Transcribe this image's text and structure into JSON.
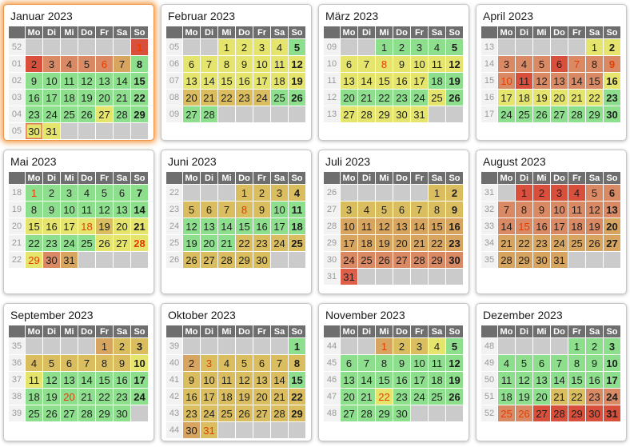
{
  "calendar": {
    "year": "2023",
    "day_headers": [
      "Mo",
      "Di",
      "Mi",
      "Do",
      "Fr",
      "Sa",
      "So"
    ],
    "colors": {
      "g": "#8ddf8d",
      "y": "#e5e56e",
      "m": "#dabd5e",
      "t": "#d7a55f",
      "o": "#d98a64",
      "r": "#d8503c",
      "s": "#dd5f4a",
      "empty": "#cbcbcb",
      "holiday_text": "#e63c00",
      "header_bg": "#6e6e6e",
      "week_bg": "#f2f2f2",
      "highlight_glow": "#f39642"
    },
    "months": [
      {
        "name": "Januar 2023",
        "highlighted": true,
        "weeks": [
          {
            "num": "52",
            "days": [
              "",
              "",
              "",
              "",
              "",
              "",
              "1:r:h"
            ]
          },
          {
            "num": "01",
            "days": [
              "2:r",
              "3:o",
              "4:o",
              "5:o",
              "6:o:h",
              "7:t",
              "8:g"
            ]
          },
          {
            "num": "02",
            "days": [
              "9:g",
              "10:g",
              "11:g",
              "12:g",
              "13:g",
              "14:g",
              "15:g"
            ]
          },
          {
            "num": "03",
            "days": [
              "16:g",
              "17:g",
              "18:g",
              "19:g",
              "20:g",
              "21:g",
              "22:g"
            ]
          },
          {
            "num": "04",
            "days": [
              "23:g",
              "24:g",
              "25:g",
              "26:g",
              "27:y",
              "28:g",
              "29:g"
            ]
          },
          {
            "num": "05",
            "days": [
              "30:y:n",
              "31:y",
              "",
              "",
              "",
              "",
              ""
            ]
          }
        ]
      },
      {
        "name": "Februar 2023",
        "highlighted": false,
        "weeks": [
          {
            "num": "05",
            "days": [
              "",
              "",
              "1:y",
              "2:y",
              "3:y",
              "4:y",
              "5:g"
            ]
          },
          {
            "num": "06",
            "days": [
              "6:y",
              "7:y",
              "8:y",
              "9:y",
              "10:y",
              "11:y",
              "12:y"
            ]
          },
          {
            "num": "07",
            "days": [
              "13:y",
              "14:y",
              "15:y",
              "16:y",
              "17:y",
              "18:y",
              "19:y"
            ]
          },
          {
            "num": "08",
            "days": [
              "20:m",
              "21:m",
              "22:m",
              "23:m",
              "24:m",
              "25:g",
              "26:g"
            ]
          },
          {
            "num": "09",
            "days": [
              "27:g",
              "28:g",
              "",
              "",
              "",
              "",
              ""
            ]
          }
        ]
      },
      {
        "name": "März 2023",
        "highlighted": false,
        "weeks": [
          {
            "num": "09",
            "days": [
              "",
              "",
              "1:g",
              "2:g",
              "3:g",
              "4:g",
              "5:g"
            ]
          },
          {
            "num": "10",
            "days": [
              "6:y",
              "7:y",
              "8:y:h",
              "9:y",
              "10:y",
              "11:y",
              "12:y"
            ]
          },
          {
            "num": "11",
            "days": [
              "13:y",
              "14:y",
              "15:y",
              "16:y",
              "17:y",
              "18:g",
              "19:g"
            ]
          },
          {
            "num": "12",
            "days": [
              "20:g",
              "21:g",
              "22:g",
              "23:g",
              "24:g",
              "25:y",
              "26:g"
            ]
          },
          {
            "num": "13",
            "days": [
              "27:y",
              "28:y",
              "29:y",
              "30:y",
              "31:y",
              "",
              ""
            ]
          }
        ]
      },
      {
        "name": "April 2023",
        "highlighted": false,
        "weeks": [
          {
            "num": "13",
            "days": [
              "",
              "",
              "",
              "",
              "",
              "1:y",
              "2:y"
            ]
          },
          {
            "num": "14",
            "days": [
              "3:o",
              "4:o",
              "5:o",
              "6:r",
              "7:o:h",
              "8:o",
              "9:o:h"
            ]
          },
          {
            "num": "15",
            "days": [
              "10:o:h",
              "11:r",
              "12:o",
              "13:o",
              "14:o",
              "15:o",
              "16:y"
            ]
          },
          {
            "num": "16",
            "days": [
              "17:y",
              "18:y",
              "19:y",
              "20:y",
              "21:y",
              "22:y",
              "23:g"
            ]
          },
          {
            "num": "17",
            "days": [
              "24:g",
              "25:g",
              "26:g",
              "27:g",
              "28:g",
              "29:g",
              "30:g"
            ]
          }
        ]
      },
      {
        "name": "Mai 2023",
        "highlighted": false,
        "weeks": [
          {
            "num": "18",
            "days": [
              "1:g:h",
              "2:g",
              "3:g",
              "4:g",
              "5:g",
              "6:g",
              "7:g"
            ]
          },
          {
            "num": "19",
            "days": [
              "8:g",
              "9:g",
              "10:g",
              "11:g",
              "12:g",
              "13:g",
              "14:g"
            ]
          },
          {
            "num": "20",
            "days": [
              "15:y",
              "16:y",
              "17:y",
              "18:y:h",
              "19:m",
              "20:y",
              "21:y"
            ]
          },
          {
            "num": "21",
            "days": [
              "22:g",
              "23:g",
              "24:g",
              "25:g",
              "26:y",
              "27:y",
              "28:y:h"
            ]
          },
          {
            "num": "22",
            "days": [
              "29:y:h",
              "30:o",
              "31:t",
              "",
              "",
              "",
              ""
            ]
          }
        ]
      },
      {
        "name": "Juni 2023",
        "highlighted": false,
        "weeks": [
          {
            "num": "22",
            "days": [
              "",
              "",
              "",
              "1:m",
              "2:m",
              "3:m",
              "4:m"
            ]
          },
          {
            "num": "23",
            "days": [
              "5:m",
              "6:m",
              "7:m",
              "8:m:h",
              "9:m",
              "10:g",
              "11:g"
            ]
          },
          {
            "num": "24",
            "days": [
              "12:g",
              "13:g",
              "14:g",
              "15:g",
              "16:g",
              "17:g",
              "18:g"
            ]
          },
          {
            "num": "25",
            "days": [
              "19:g",
              "20:g",
              "21:g",
              "22:m",
              "23:m",
              "24:m",
              "25:m"
            ]
          },
          {
            "num": "26",
            "days": [
              "26:m",
              "27:m",
              "28:m",
              "29:m",
              "30:m",
              "",
              ""
            ]
          }
        ]
      },
      {
        "name": "Juli 2023",
        "highlighted": false,
        "weeks": [
          {
            "num": "26",
            "days": [
              "",
              "",
              "",
              "",
              "",
              "1:m",
              "2:m"
            ]
          },
          {
            "num": "27",
            "days": [
              "3:m",
              "4:m",
              "5:m",
              "6:m",
              "7:m",
              "8:m",
              "9:m"
            ]
          },
          {
            "num": "28",
            "days": [
              "10:t",
              "11:t",
              "12:t",
              "13:t",
              "14:t",
              "15:t",
              "16:t"
            ]
          },
          {
            "num": "29",
            "days": [
              "17:t",
              "18:t",
              "19:t",
              "20:t",
              "21:t",
              "22:t",
              "23:t"
            ]
          },
          {
            "num": "30",
            "days": [
              "24:o",
              "25:o",
              "26:o",
              "27:o",
              "28:o",
              "29:o",
              "30:o"
            ]
          },
          {
            "num": "31",
            "days": [
              "31:s",
              "",
              "",
              "",
              "",
              "",
              ""
            ]
          }
        ]
      },
      {
        "name": "August 2023",
        "highlighted": false,
        "weeks": [
          {
            "num": "31",
            "days": [
              "",
              "1:r",
              "2:r",
              "3:r",
              "4:r",
              "5:o",
              "6:o"
            ]
          },
          {
            "num": "32",
            "days": [
              "7:o",
              "8:o",
              "9:o",
              "10:o",
              "11:o",
              "12:o",
              "13:o"
            ]
          },
          {
            "num": "33",
            "days": [
              "14:o",
              "15:o:h",
              "16:o",
              "17:o",
              "18:o",
              "19:o",
              "20:t"
            ]
          },
          {
            "num": "34",
            "days": [
              "21:t",
              "22:t",
              "23:t",
              "24:t",
              "25:t",
              "26:t",
              "27:t"
            ]
          },
          {
            "num": "35",
            "days": [
              "28:t",
              "29:t",
              "30:t",
              "31:t",
              "",
              "",
              ""
            ]
          }
        ]
      },
      {
        "name": "September 2023",
        "highlighted": false,
        "weeks": [
          {
            "num": "35",
            "days": [
              "",
              "",
              "",
              "",
              "1:t",
              "2:m",
              "3:m"
            ]
          },
          {
            "num": "36",
            "days": [
              "4:m",
              "5:m",
              "6:m",
              "7:m",
              "8:m",
              "9:m",
              "10:y"
            ]
          },
          {
            "num": "37",
            "days": [
              "11:y",
              "12:g",
              "13:g",
              "14:g",
              "15:g",
              "16:g",
              "17:g"
            ]
          },
          {
            "num": "38",
            "days": [
              "18:g",
              "19:g",
              "20:g:h",
              "21:g",
              "22:g",
              "23:g",
              "24:g"
            ]
          },
          {
            "num": "39",
            "days": [
              "25:g",
              "26:g",
              "27:g",
              "28:g",
              "29:g",
              "30:g",
              ""
            ]
          }
        ]
      },
      {
        "name": "Oktober 2023",
        "highlighted": false,
        "weeks": [
          {
            "num": "39",
            "days": [
              "",
              "",
              "",
              "",
              "",
              "",
              "1:g"
            ]
          },
          {
            "num": "40",
            "days": [
              "2:t",
              "3:m:h",
              "4:m",
              "5:m",
              "6:m",
              "7:m",
              "8:m"
            ]
          },
          {
            "num": "41",
            "days": [
              "9:m",
              "10:m",
              "11:m",
              "12:m",
              "13:m",
              "14:m",
              "15:g"
            ]
          },
          {
            "num": "42",
            "days": [
              "16:m",
              "17:m",
              "18:m",
              "19:m",
              "20:m",
              "21:m",
              "22:m"
            ]
          },
          {
            "num": "43",
            "days": [
              "23:m",
              "24:m",
              "25:m",
              "26:m",
              "27:m",
              "28:m",
              "29:m"
            ]
          },
          {
            "num": "44",
            "days": [
              "30:t",
              "31:m:h",
              "",
              "",
              "",
              "",
              ""
            ]
          }
        ]
      },
      {
        "name": "November 2023",
        "highlighted": false,
        "weeks": [
          {
            "num": "44",
            "days": [
              "",
              "",
              "1:t:h",
              "2:m",
              "3:m",
              "4:y",
              "5:g"
            ]
          },
          {
            "num": "45",
            "days": [
              "6:g",
              "7:g",
              "8:g",
              "9:g",
              "10:g",
              "11:g",
              "12:g"
            ]
          },
          {
            "num": "46",
            "days": [
              "13:g",
              "14:g",
              "15:g",
              "16:g",
              "17:g",
              "18:g",
              "19:g"
            ]
          },
          {
            "num": "47",
            "days": [
              "20:g",
              "21:g",
              "22:y:h",
              "23:g",
              "24:g",
              "25:g",
              "26:g"
            ]
          },
          {
            "num": "48",
            "days": [
              "27:g",
              "28:g",
              "29:g",
              "30:g",
              "",
              "",
              ""
            ]
          }
        ]
      },
      {
        "name": "Dezember 2023",
        "highlighted": false,
        "weeks": [
          {
            "num": "48",
            "days": [
              "",
              "",
              "",
              "",
              "1:g",
              "2:g",
              "3:g"
            ]
          },
          {
            "num": "49",
            "days": [
              "4:g",
              "5:g",
              "6:g",
              "7:g",
              "8:g",
              "9:g",
              "10:g"
            ]
          },
          {
            "num": "50",
            "days": [
              "11:g",
              "12:g",
              "13:g",
              "14:g",
              "15:g",
              "16:g",
              "17:g"
            ]
          },
          {
            "num": "51",
            "days": [
              "18:g",
              "19:g",
              "20:g",
              "21:m",
              "22:m",
              "23:o",
              "24:o"
            ]
          },
          {
            "num": "52",
            "days": [
              "25:o:h",
              "26:o:h",
              "27:r",
              "28:r",
              "29:r",
              "30:r",
              "31:r"
            ]
          }
        ]
      }
    ]
  }
}
